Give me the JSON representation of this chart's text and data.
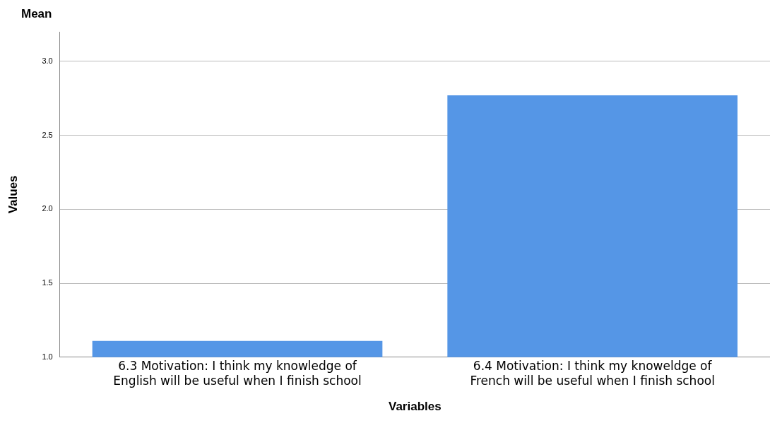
{
  "chart_data": {
    "type": "bar",
    "title": "Mean",
    "xlabel": "Variables",
    "ylabel": "Values",
    "categories": [
      "6.3 Motivation: I think my knowledge of English will be useful when I finish school",
      "6.4 Motivation: I think my knoweldge of French will be useful when I finish school"
    ],
    "values": [
      1.11,
      2.77
    ],
    "color": "#5596e6",
    "ylim": [
      1,
      3.2
    ],
    "yticks": [
      {
        "value": 1,
        "label": "1.0"
      },
      1.5,
      {
        "value": 2,
        "label": "2.0"
      },
      2.5,
      {
        "value": 3,
        "label": "3.0"
      }
    ],
    "grid": "y",
    "legend": false
  }
}
